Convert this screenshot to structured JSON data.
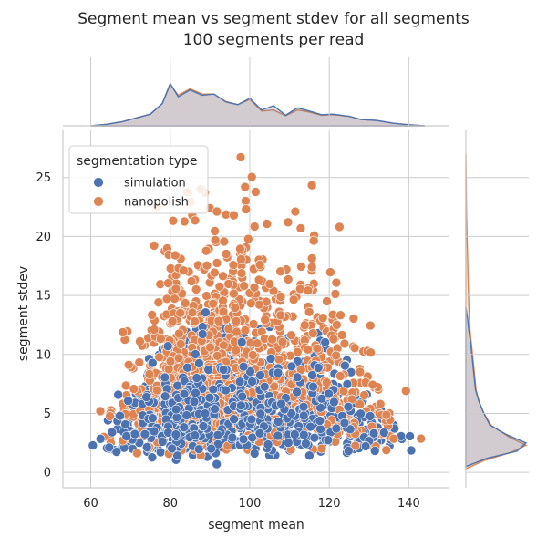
{
  "chart_data": {
    "type": "scatter",
    "title_lines": [
      "Segment mean vs segment stdev for all segments",
      "100 segments per read"
    ],
    "xlabel": "segment mean",
    "ylabel": "segment stdev",
    "xlim": [
      53,
      150
    ],
    "ylim": [
      -1.3,
      29
    ],
    "xticks": [
      60,
      80,
      100,
      120,
      140
    ],
    "yticks": [
      0,
      5,
      10,
      15,
      20,
      25
    ],
    "grid": true,
    "legend": {
      "title": "segmentation type",
      "placement": "upper-left"
    },
    "series": [
      {
        "name": "simulation",
        "color": "#4c72b0",
        "x_range": [
          60,
          140
        ],
        "y_range": [
          0.5,
          14
        ],
        "marginal_x": [
          [
            60,
            0.0
          ],
          [
            64,
            0.03
          ],
          [
            68,
            0.08
          ],
          [
            72,
            0.16
          ],
          [
            75,
            0.22
          ],
          [
            78,
            0.42
          ],
          [
            80,
            0.8
          ],
          [
            82,
            0.55
          ],
          [
            85,
            0.68
          ],
          [
            88,
            0.58
          ],
          [
            91,
            0.6
          ],
          [
            94,
            0.45
          ],
          [
            97,
            0.4
          ],
          [
            100,
            0.52
          ],
          [
            103,
            0.3
          ],
          [
            106,
            0.38
          ],
          [
            109,
            0.2
          ],
          [
            112,
            0.34
          ],
          [
            115,
            0.28
          ],
          [
            118,
            0.21
          ],
          [
            121,
            0.22
          ],
          [
            125,
            0.18
          ],
          [
            128,
            0.12
          ],
          [
            132,
            0.1
          ],
          [
            136,
            0.05
          ],
          [
            140,
            0.02
          ],
          [
            144,
            0.0
          ]
        ],
        "marginal_y": [
          [
            0.5,
            0.0
          ],
          [
            1.2,
            0.35
          ],
          [
            1.8,
            0.85
          ],
          [
            2.5,
            1.0
          ],
          [
            3.2,
            0.68
          ],
          [
            4.0,
            0.4
          ],
          [
            5.0,
            0.3
          ],
          [
            6.0,
            0.22
          ],
          [
            7.0,
            0.16
          ],
          [
            8.0,
            0.14
          ],
          [
            9.0,
            0.12
          ],
          [
            10.0,
            0.1
          ],
          [
            11.0,
            0.08
          ],
          [
            12.0,
            0.05
          ],
          [
            13.0,
            0.03
          ],
          [
            14.0,
            0.0
          ]
        ]
      },
      {
        "name": "nanopolish",
        "color": "#dd8452",
        "x_range": [
          60,
          142
        ],
        "y_range": [
          0.3,
          27
        ],
        "marginal_x": [
          [
            60,
            0.0
          ],
          [
            64,
            0.03
          ],
          [
            68,
            0.08
          ],
          [
            72,
            0.16
          ],
          [
            75,
            0.22
          ],
          [
            78,
            0.42
          ],
          [
            80,
            0.78
          ],
          [
            82,
            0.58
          ],
          [
            85,
            0.7
          ],
          [
            88,
            0.6
          ],
          [
            91,
            0.6
          ],
          [
            94,
            0.46
          ],
          [
            97,
            0.4
          ],
          [
            100,
            0.5
          ],
          [
            103,
            0.28
          ],
          [
            106,
            0.3
          ],
          [
            109,
            0.19
          ],
          [
            112,
            0.3
          ],
          [
            115,
            0.26
          ],
          [
            118,
            0.2
          ],
          [
            121,
            0.21
          ],
          [
            125,
            0.18
          ],
          [
            128,
            0.12
          ],
          [
            132,
            0.1
          ],
          [
            136,
            0.05
          ],
          [
            140,
            0.02
          ],
          [
            144,
            0.0
          ]
        ],
        "marginal_y": [
          [
            0.3,
            0.0
          ],
          [
            1.0,
            0.3
          ],
          [
            1.7,
            0.75
          ],
          [
            2.3,
            1.0
          ],
          [
            3.0,
            0.72
          ],
          [
            4.0,
            0.42
          ],
          [
            5.0,
            0.3
          ],
          [
            6.0,
            0.22
          ],
          [
            7.0,
            0.17
          ],
          [
            8.0,
            0.15
          ],
          [
            9.0,
            0.13
          ],
          [
            10.0,
            0.11
          ],
          [
            11.0,
            0.09
          ],
          [
            12.0,
            0.07
          ],
          [
            13.0,
            0.06
          ],
          [
            14.0,
            0.05
          ],
          [
            16.0,
            0.04
          ],
          [
            18.0,
            0.03
          ],
          [
            20.0,
            0.02
          ],
          [
            22.0,
            0.01
          ],
          [
            25.0,
            0.005
          ],
          [
            27.0,
            0.0
          ]
        ]
      }
    ]
  }
}
